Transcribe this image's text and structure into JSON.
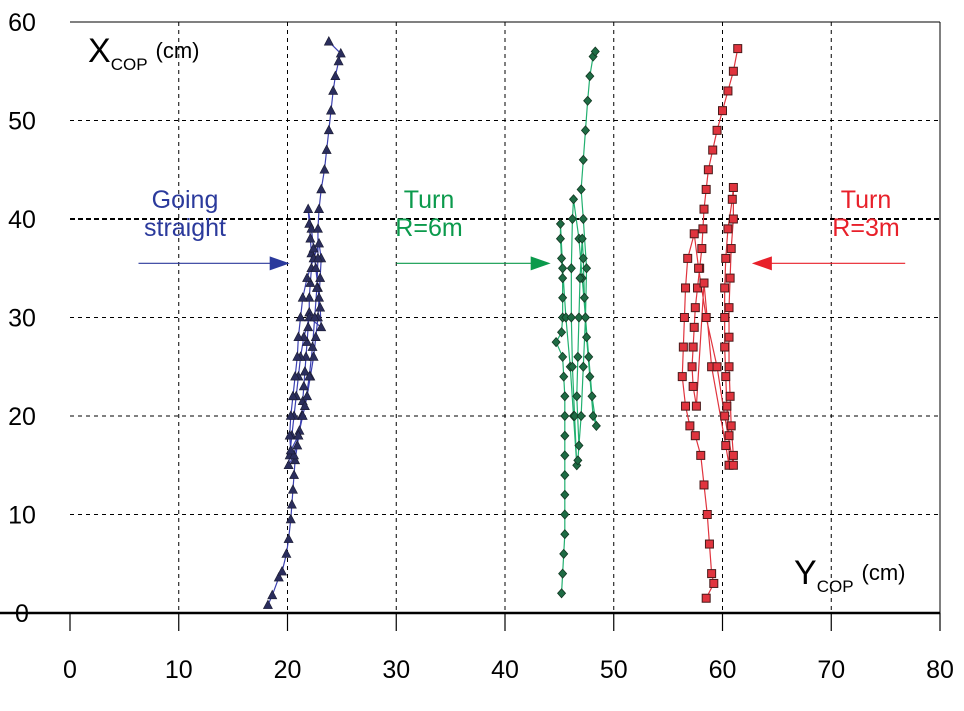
{
  "chart_data": {
    "type": "scatter",
    "xlabel": {
      "main": "Y",
      "sub": "COP",
      "unit": "(cm)"
    },
    "ylabel": {
      "main": "X",
      "sub": "COP",
      "unit": "(cm)"
    },
    "xlim": [
      0,
      80
    ],
    "ylim": [
      0,
      60
    ],
    "xticks": [
      "0",
      "10",
      "20",
      "30",
      "40",
      "50",
      "60",
      "70",
      "80"
    ],
    "yticks": [
      "0",
      "10",
      "20",
      "30",
      "40",
      "50",
      "60"
    ],
    "grid": true,
    "series": [
      {
        "name": "Going straight",
        "label_lines": [
          "Going",
          "straight"
        ],
        "marker": "triangle",
        "color": "#2b3a9c",
        "marker_fill": "#2a2d5c",
        "line_color": "#3b40b0",
        "arrow": {
          "from": [
            6.3,
            35.5
          ],
          "to": [
            20.2,
            35.5
          ]
        },
        "points": [
          [
            18.2,
            0.8
          ],
          [
            18.6,
            1.8
          ],
          [
            19.2,
            3.6
          ],
          [
            19.5,
            4.2
          ],
          [
            19.9,
            6
          ],
          [
            20.1,
            7.5
          ],
          [
            20.3,
            9.5
          ],
          [
            20.4,
            11
          ],
          [
            20.5,
            12.5
          ],
          [
            20.6,
            14
          ],
          [
            20.7,
            15.5
          ],
          [
            20.9,
            17
          ],
          [
            21.1,
            18.5
          ],
          [
            21.3,
            20
          ],
          [
            21.4,
            21.5
          ],
          [
            21.5,
            23
          ],
          [
            21.6,
            24.5
          ],
          [
            21.7,
            26
          ],
          [
            21.8,
            27.5
          ],
          [
            21.9,
            29
          ],
          [
            22.0,
            30.5
          ],
          [
            22.0,
            32
          ],
          [
            22.1,
            33.5
          ],
          [
            22.2,
            35
          ],
          [
            22.2,
            36.5
          ],
          [
            22.1,
            38
          ],
          [
            22.0,
            39.5
          ],
          [
            21.9,
            41
          ],
          [
            22.2,
            39
          ],
          [
            22.4,
            37
          ],
          [
            22.6,
            35
          ],
          [
            22.8,
            33
          ],
          [
            23.0,
            31
          ],
          [
            23.1,
            29
          ],
          [
            22.0,
            30
          ],
          [
            21.5,
            28
          ],
          [
            21.2,
            26
          ],
          [
            21.0,
            24
          ],
          [
            20.8,
            22
          ],
          [
            20.6,
            20
          ],
          [
            20.4,
            18
          ],
          [
            20.2,
            16
          ],
          [
            20.1,
            15
          ],
          [
            20.6,
            16
          ],
          [
            21.0,
            18
          ],
          [
            21.4,
            20
          ],
          [
            21.8,
            22
          ],
          [
            22.1,
            24
          ],
          [
            22.4,
            26
          ],
          [
            22.6,
            28
          ],
          [
            22.8,
            30
          ],
          [
            22.9,
            32
          ],
          [
            23.0,
            34
          ],
          [
            23.1,
            36
          ],
          [
            22.9,
            37.5
          ],
          [
            22.4,
            36
          ],
          [
            21.8,
            34
          ],
          [
            21.4,
            32
          ],
          [
            21.2,
            30
          ],
          [
            21.0,
            28
          ],
          [
            20.9,
            26
          ],
          [
            20.7,
            24
          ],
          [
            20.5,
            22
          ],
          [
            20.3,
            20
          ],
          [
            20.2,
            18
          ],
          [
            20.3,
            16.5
          ],
          [
            21.0,
            18
          ],
          [
            21.6,
            21
          ],
          [
            22.0,
            24
          ],
          [
            22.3,
            27
          ],
          [
            22.5,
            30
          ],
          [
            22.7,
            33
          ],
          [
            22.8,
            36
          ],
          [
            22.8,
            39
          ],
          [
            22.9,
            41
          ],
          [
            23.1,
            43
          ],
          [
            23.4,
            45
          ],
          [
            23.6,
            47
          ],
          [
            23.8,
            49
          ],
          [
            24.0,
            51
          ],
          [
            24.2,
            53
          ],
          [
            24.4,
            54.5
          ],
          [
            24.7,
            56
          ],
          [
            24.9,
            56.8
          ],
          [
            23.8,
            58
          ]
        ]
      },
      {
        "name": "Turn R=6m",
        "label_lines": [
          "Turn",
          "R=6m"
        ],
        "marker": "diamond",
        "color": "#0b9a4c",
        "marker_fill": "#1e6b44",
        "line_color": "#22b070",
        "arrow": {
          "from": [
            30.0,
            35.5
          ],
          "to": [
            44.2,
            35.5
          ]
        },
        "points": [
          [
            45.2,
            2
          ],
          [
            45.3,
            4
          ],
          [
            45.4,
            6
          ],
          [
            45.5,
            8
          ],
          [
            45.5,
            10
          ],
          [
            45.5,
            12
          ],
          [
            45.5,
            14
          ],
          [
            45.5,
            16
          ],
          [
            45.5,
            18
          ],
          [
            45.5,
            20
          ],
          [
            45.5,
            22
          ],
          [
            45.4,
            24
          ],
          [
            45.3,
            26
          ],
          [
            44.7,
            27.5
          ],
          [
            45.2,
            28.5
          ],
          [
            45.3,
            30
          ],
          [
            45.3,
            32
          ],
          [
            45.3,
            34
          ],
          [
            45.2,
            36
          ],
          [
            45.1,
            38
          ],
          [
            45.1,
            39.5
          ],
          [
            45.3,
            35
          ],
          [
            45.6,
            30
          ],
          [
            46.0,
            25
          ],
          [
            46.3,
            20
          ],
          [
            46.6,
            15
          ],
          [
            46.4,
            20
          ],
          [
            46.2,
            25
          ],
          [
            46.1,
            30
          ],
          [
            46.1,
            35
          ],
          [
            46.2,
            40
          ],
          [
            46.3,
            42
          ],
          [
            46.8,
            38
          ],
          [
            47.1,
            34
          ],
          [
            47.4,
            30
          ],
          [
            47.7,
            26
          ],
          [
            48.0,
            22
          ],
          [
            48.4,
            19
          ],
          [
            48.1,
            20
          ],
          [
            47.8,
            24
          ],
          [
            47.5,
            28
          ],
          [
            47.3,
            32
          ],
          [
            47.2,
            36
          ],
          [
            47.1,
            38
          ],
          [
            46.9,
            34
          ],
          [
            46.8,
            30
          ],
          [
            46.7,
            26
          ],
          [
            46.6,
            22
          ],
          [
            46.8,
            17
          ],
          [
            46.7,
            15.5
          ],
          [
            47.0,
            20
          ],
          [
            47.2,
            25
          ],
          [
            47.4,
            30
          ],
          [
            47.5,
            35
          ],
          [
            47.2,
            40
          ],
          [
            47.0,
            43
          ],
          [
            47.2,
            46
          ],
          [
            47.4,
            49
          ],
          [
            47.6,
            52
          ],
          [
            47.8,
            54.5
          ],
          [
            48.1,
            56.5
          ],
          [
            48.3,
            57
          ]
        ]
      },
      {
        "name": "Turn R=3m",
        "label_lines": [
          "Turn",
          "R=3m"
        ],
        "marker": "square",
        "color": "#e8202a",
        "marker_fill": "#e0343e",
        "line_color": "#e0343e",
        "arrow": {
          "from": [
            76.8,
            35.5
          ],
          "to": [
            62.7,
            35.5
          ]
        },
        "points": [
          [
            61.4,
            57.3
          ],
          [
            61.0,
            55
          ],
          [
            60.5,
            53
          ],
          [
            60.0,
            51
          ],
          [
            59.5,
            49
          ],
          [
            59.1,
            47
          ],
          [
            58.7,
            45
          ],
          [
            58.5,
            43
          ],
          [
            58.3,
            41
          ],
          [
            58.2,
            39
          ],
          [
            58.1,
            37
          ],
          [
            57.9,
            35
          ],
          [
            57.7,
            33
          ],
          [
            57.5,
            31
          ],
          [
            57.4,
            29
          ],
          [
            57.3,
            27
          ],
          [
            57.2,
            25
          ],
          [
            57.3,
            23
          ],
          [
            57.6,
            21
          ],
          [
            58.3,
            33.5
          ],
          [
            59.0,
            25
          ],
          [
            60.3,
            17
          ],
          [
            60.6,
            15
          ],
          [
            60.6,
            18
          ],
          [
            60.4,
            21
          ],
          [
            60.3,
            24
          ],
          [
            60.2,
            27
          ],
          [
            60.2,
            30
          ],
          [
            60.2,
            33
          ],
          [
            60.3,
            36
          ],
          [
            60.5,
            39
          ],
          [
            60.9,
            42
          ],
          [
            61.0,
            43.2
          ],
          [
            61.0,
            40
          ],
          [
            60.8,
            37
          ],
          [
            60.7,
            34
          ],
          [
            60.6,
            31
          ],
          [
            60.6,
            28
          ],
          [
            60.6,
            25
          ],
          [
            60.7,
            22
          ],
          [
            60.8,
            19
          ],
          [
            61.0,
            16
          ],
          [
            61.0,
            15
          ],
          [
            60.2,
            20
          ],
          [
            59.5,
            25
          ],
          [
            58.5,
            30
          ],
          [
            57.8,
            35
          ],
          [
            57.4,
            38.5
          ],
          [
            56.8,
            36
          ],
          [
            56.6,
            33
          ],
          [
            56.5,
            30
          ],
          [
            56.4,
            27
          ],
          [
            56.3,
            24
          ],
          [
            56.6,
            21
          ],
          [
            57.0,
            19
          ],
          [
            57.5,
            18
          ],
          [
            58.0,
            16
          ],
          [
            58.3,
            13
          ],
          [
            58.6,
            10
          ],
          [
            58.8,
            7
          ],
          [
            59.0,
            4
          ],
          [
            59.2,
            3
          ],
          [
            58.5,
            1.5
          ]
        ]
      }
    ]
  }
}
